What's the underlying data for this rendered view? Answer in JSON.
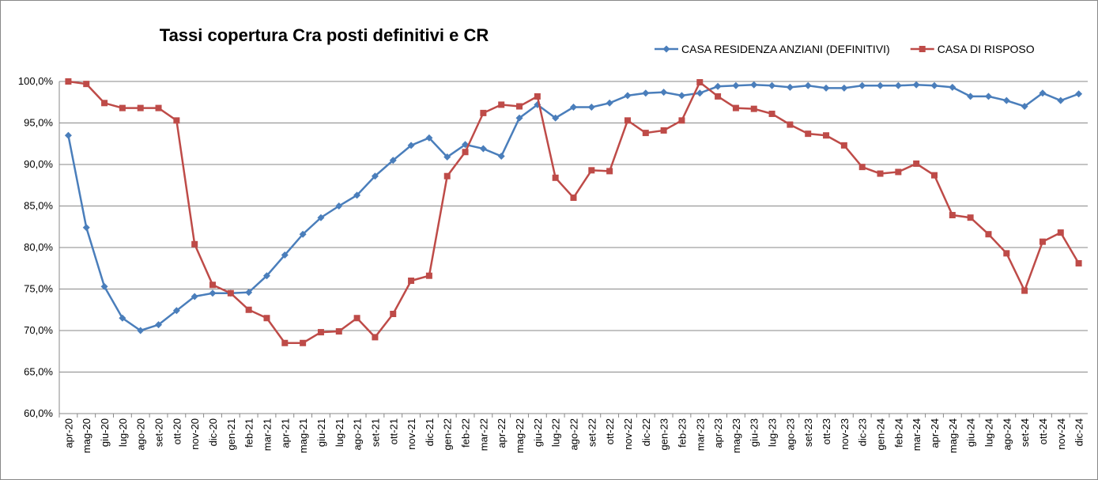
{
  "chart_data": {
    "type": "line",
    "title": "Tassi copertura Cra posti definitivi e CR",
    "categories": [
      "apr-20",
      "mag-20",
      "giu-20",
      "lug-20",
      "ago-20",
      "set-20",
      "ott-20",
      "nov-20",
      "dic-20",
      "gen-21",
      "feb-21",
      "mar-21",
      "apr-21",
      "mag-21",
      "giu-21",
      "lug-21",
      "ago-21",
      "set-21",
      "ott-21",
      "nov-21",
      "dic-21",
      "gen-22",
      "feb-22",
      "mar-22",
      "apr-22",
      "mag-22",
      "giu-22",
      "lug-22",
      "ago-22",
      "set-22",
      "ott-22",
      "nov-22",
      "dic-22",
      "gen-23",
      "feb-23",
      "mar-23",
      "apr-23",
      "mag-23",
      "giu-23",
      "lug-23",
      "ago-23",
      "set-23",
      "ott-23",
      "nov-23",
      "dic-23",
      "gen-24",
      "feb-24",
      "mar-24",
      "apr-24",
      "mag-24",
      "giu-24",
      "lug-24",
      "ago-24",
      "set-24",
      "ott-24",
      "nov-24",
      "dic-24"
    ],
    "series": [
      {
        "name": "CASA RESIDENZA ANZIANI (DEFINITIVI)",
        "color": "#4a7ebb",
        "marker": "diamond",
        "values": [
          93.5,
          82.4,
          75.3,
          71.5,
          70.0,
          70.7,
          72.4,
          74.1,
          74.5,
          74.5,
          74.6,
          76.6,
          79.1,
          81.6,
          83.6,
          85.0,
          86.3,
          88.6,
          90.5,
          92.3,
          93.2,
          90.9,
          92.4,
          91.9,
          91.0,
          95.6,
          97.2,
          95.6,
          96.9,
          96.9,
          97.4,
          98.3,
          98.6,
          98.7,
          98.3,
          98.6,
          99.4,
          99.5,
          99.6,
          99.5,
          99.3,
          99.5,
          99.2,
          99.2,
          99.5,
          99.5,
          99.5,
          99.6,
          99.5,
          99.3,
          98.2,
          98.2,
          97.7,
          97.0,
          98.6,
          97.7,
          98.5
        ]
      },
      {
        "name": "CASA DI RISPOSO",
        "color": "#be4b48",
        "marker": "square",
        "values": [
          100.0,
          99.7,
          97.4,
          96.8,
          96.8,
          96.8,
          95.3,
          80.4,
          75.5,
          74.5,
          72.5,
          71.5,
          68.5,
          68.5,
          69.8,
          69.9,
          71.5,
          69.2,
          72.0,
          76.0,
          76.6,
          88.6,
          91.5,
          96.2,
          97.2,
          97.0,
          98.2,
          88.4,
          86.0,
          89.3,
          89.2,
          95.3,
          93.8,
          94.1,
          95.3,
          99.9,
          98.2,
          96.8,
          96.7,
          96.1,
          94.8,
          93.7,
          93.5,
          92.3,
          89.7,
          88.9,
          89.1,
          90.1,
          88.7,
          83.9,
          83.6,
          81.6,
          79.3,
          74.8,
          80.7,
          81.8,
          78.1
        ]
      }
    ],
    "ylim": [
      60,
      100
    ],
    "yticks": [
      {
        "value": 60,
        "label": "60,0%"
      },
      {
        "value": 65,
        "label": "65,0%"
      },
      {
        "value": 70,
        "label": "70,0%"
      },
      {
        "value": 75,
        "label": "75,0%"
      },
      {
        "value": 80,
        "label": "80,0%"
      },
      {
        "value": 85,
        "label": "85,0%"
      },
      {
        "value": 90,
        "label": "90,0%"
      },
      {
        "value": 95,
        "label": "95,0%"
      },
      {
        "value": 100,
        "label": "100,0%"
      }
    ],
    "grid": true,
    "legend": "top-right"
  }
}
